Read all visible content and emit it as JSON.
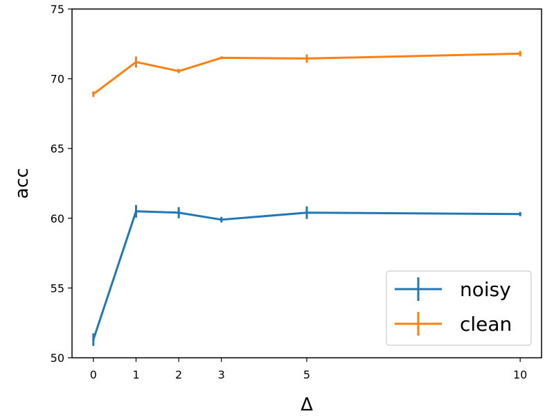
{
  "chart_data": {
    "type": "line",
    "title": "",
    "xlabel": "Δ",
    "ylabel": "acc",
    "x": [
      0,
      1,
      2,
      3,
      5,
      10
    ],
    "xticks": [
      0,
      1,
      2,
      3,
      5,
      10
    ],
    "xlim": [
      -0.5,
      10.5
    ],
    "ylim": [
      50,
      75
    ],
    "yticks": [
      50,
      55,
      60,
      65,
      70,
      75
    ],
    "grid": false,
    "legend_position": "bottom-right",
    "series": [
      {
        "name": "noisy",
        "color": "#1f77b4",
        "values": [
          51.3,
          60.5,
          60.4,
          59.9,
          60.4,
          60.3
        ],
        "errors": [
          0.45,
          0.45,
          0.4,
          0.2,
          0.45,
          0.15
        ]
      },
      {
        "name": "clean",
        "color": "#ff7f0e",
        "values": [
          68.9,
          71.2,
          70.55,
          71.5,
          71.45,
          71.8
        ],
        "errors": [
          0.2,
          0.4,
          0.15,
          0.1,
          0.3,
          0.2
        ]
      }
    ]
  }
}
